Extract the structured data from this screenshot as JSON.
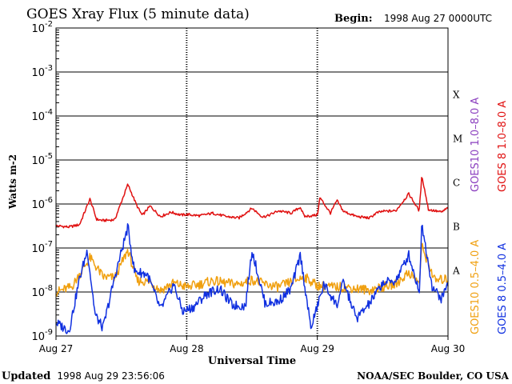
{
  "chart_data": {
    "type": "line",
    "title": "GOES Xray Flux (5 minute data)",
    "begin_label": "Begin:",
    "begin_value": "1998 Aug 27 0000UTC",
    "ylabel": "Watts m-2",
    "xlabel": "Universal Time",
    "y_scale": "log",
    "ylim": [
      1e-09,
      0.01
    ],
    "y_ticks": [
      {
        "base": "10",
        "exp": "-2",
        "value": 0.01
      },
      {
        "base": "10",
        "exp": "-3",
        "value": 0.001
      },
      {
        "base": "10",
        "exp": "-4",
        "value": 0.0001
      },
      {
        "base": "10",
        "exp": "-5",
        "value": 1e-05
      },
      {
        "base": "10",
        "exp": "-6",
        "value": 1e-06
      },
      {
        "base": "10",
        "exp": "-7",
        "value": 1e-07
      },
      {
        "base": "10",
        "exp": "-8",
        "value": 1e-08
      },
      {
        "base": "10",
        "exp": "-9",
        "value": 1e-09
      }
    ],
    "x_ticks": [
      "Aug 27",
      "Aug 28",
      "Aug 29",
      "Aug 30"
    ],
    "x_range_days": [
      0,
      3
    ],
    "flare_classes": [
      {
        "label": "X",
        "value": 0.0001
      },
      {
        "label": "M",
        "value": 1e-05
      },
      {
        "label": "C",
        "value": 1e-06
      },
      {
        "label": "B",
        "value": 1e-07
      },
      {
        "label": "A",
        "value": 1e-08
      }
    ],
    "grid": true,
    "legend": [
      {
        "name": "GOES10 1.0–8.0 A",
        "color": "#8b3fbf",
        "group": "upper"
      },
      {
        "name": "GOES 8 1.0–8.0 A",
        "color": "#e01010",
        "group": "upper"
      },
      {
        "name": "GOES10 0.5–4.0 A",
        "color": "#f0a010",
        "group": "lower"
      },
      {
        "name": "GOES 8 0.5–4.0 A",
        "color": "#1030e0",
        "group": "lower"
      }
    ],
    "series": [
      {
        "name": "GOES 8 1.0–8.0 A",
        "color": "#e01010",
        "x_days": [
          0,
          0.1,
          0.18,
          0.26,
          0.31,
          0.36,
          0.45,
          0.55,
          0.62,
          0.66,
          0.72,
          0.8,
          0.88,
          0.96,
          1.0,
          1.1,
          1.2,
          1.3,
          1.4,
          1.5,
          1.58,
          1.62,
          1.7,
          1.8,
          1.87,
          1.9,
          2.0,
          2.02,
          2.1,
          2.15,
          2.2,
          2.3,
          2.4,
          2.45,
          2.5,
          2.6,
          2.7,
          2.78,
          2.8,
          2.85,
          2.9,
          2.95,
          3.0
        ],
        "values": [
          3.2e-07,
          3e-07,
          3.4e-07,
          1.3e-06,
          4.5e-07,
          4.2e-07,
          4.4e-07,
          2.8e-06,
          9e-07,
          5.5e-07,
          9e-07,
          5.2e-07,
          6.5e-07,
          5.6e-07,
          5.8e-07,
          5.4e-07,
          6.2e-07,
          5.2e-07,
          4.8e-07,
          8e-07,
          5.1e-07,
          5.4e-07,
          7e-07,
          6.2e-07,
          8.5e-07,
          5.2e-07,
          5.6e-07,
          1.4e-06,
          6.2e-07,
          1.2e-06,
          6.8e-07,
          5.2e-07,
          4.8e-07,
          6.2e-07,
          6.8e-07,
          7e-07,
          1.7e-06,
          7e-07,
          4.5e-06,
          7.5e-07,
          7e-07,
          6.5e-07,
          8.2e-07
        ]
      },
      {
        "name": "GOES10 0.5–4.0 A",
        "color": "#f0a010",
        "x_days": [
          0,
          0.12,
          0.18,
          0.26,
          0.36,
          0.45,
          0.55,
          0.62,
          0.72,
          0.8,
          0.9,
          1.0,
          1.1,
          1.2,
          1.3,
          1.4,
          1.5,
          1.6,
          1.7,
          1.8,
          1.9,
          2.0,
          2.1,
          2.2,
          2.3,
          2.4,
          2.5,
          2.6,
          2.7,
          2.78,
          2.8,
          2.9,
          3.0
        ],
        "values": [
          1e-08,
          1.3e-08,
          2.5e-08,
          6e-08,
          2.2e-08,
          2.1e-08,
          9e-08,
          1.8e-08,
          1.7e-08,
          1.1e-08,
          1.6e-08,
          1.3e-08,
          1.5e-08,
          1.8e-08,
          1.6e-08,
          1.5e-08,
          1.9e-08,
          1.5e-08,
          1.3e-08,
          1.7e-08,
          2.2e-08,
          1.4e-08,
          1.3e-08,
          1.3e-08,
          1.2e-08,
          1.1e-08,
          1.3e-08,
          1.5e-08,
          2.8e-08,
          1.6e-08,
          1.1e-07,
          1.8e-08,
          2e-08
        ]
      },
      {
        "name": "GOES 8 0.5–4.0 A",
        "color": "#1030e0",
        "x_days": [
          0,
          0.1,
          0.18,
          0.24,
          0.3,
          0.36,
          0.45,
          0.55,
          0.6,
          0.7,
          0.8,
          0.9,
          0.97,
          1.05,
          1.15,
          1.25,
          1.35,
          1.45,
          1.5,
          1.6,
          1.7,
          1.8,
          1.87,
          1.95,
          2.05,
          2.15,
          2.2,
          2.3,
          2.4,
          2.5,
          2.6,
          2.7,
          2.78,
          2.8,
          2.88,
          2.95,
          3.0
        ],
        "values": [
          2e-09,
          1.3e-09,
          2e-08,
          9e-08,
          3e-09,
          1.5e-09,
          2.2e-08,
          3e-07,
          3e-08,
          2.5e-08,
          4e-09,
          1.5e-08,
          3.6e-09,
          4.5e-09,
          9e-09,
          1.2e-08,
          5e-09,
          4.8e-09,
          9e-08,
          5.5e-09,
          6e-09,
          1.2e-08,
          7e-08,
          1.5e-09,
          1.5e-08,
          5e-09,
          1.7e-08,
          2.5e-09,
          5.5e-09,
          1.6e-08,
          1.8e-08,
          7e-08,
          1e-08,
          3.5e-07,
          1.3e-08,
          7e-09,
          1.6e-08
        ]
      }
    ]
  },
  "footer": {
    "updated_label": "Updated",
    "updated_value": "1998 Aug 29 23:56:06",
    "credit": "NOAA/SEC Boulder, CO USA"
  }
}
